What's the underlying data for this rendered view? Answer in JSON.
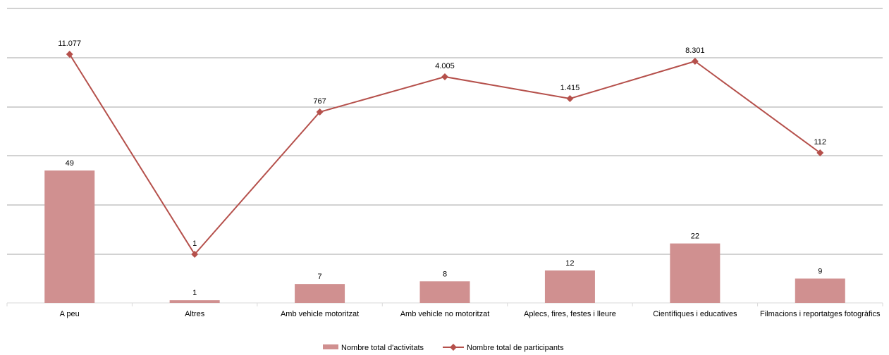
{
  "chart_data": {
    "type": "bar",
    "categories": [
      "A peu",
      "Altres",
      "Amb vehicle motoritzat",
      "Amb vehicle no motoritzat",
      "Aplecs, fires, festes i lleure",
      "Científiques i educatives",
      "Filmacions i reportatges fotogràfics"
    ],
    "series": [
      {
        "name": "Nombre total d'activitats",
        "type": "bar",
        "values": [
          49,
          1,
          7,
          8,
          12,
          22,
          9
        ],
        "labels": [
          "49",
          "1",
          "7",
          "8",
          "12",
          "22",
          "9"
        ]
      },
      {
        "name": "Nombre total de participants",
        "type": "line",
        "values": [
          11077,
          1,
          767,
          4005,
          1415,
          8301,
          112
        ],
        "labels": [
          "11.077",
          "1",
          "767",
          "4.005",
          "1.415",
          "8.301",
          "112"
        ]
      }
    ],
    "grid": true,
    "legend_position": "bottom",
    "colors": {
      "bar": "#d09090",
      "line": "#b5504b",
      "grid": "#a6a6a6"
    }
  }
}
